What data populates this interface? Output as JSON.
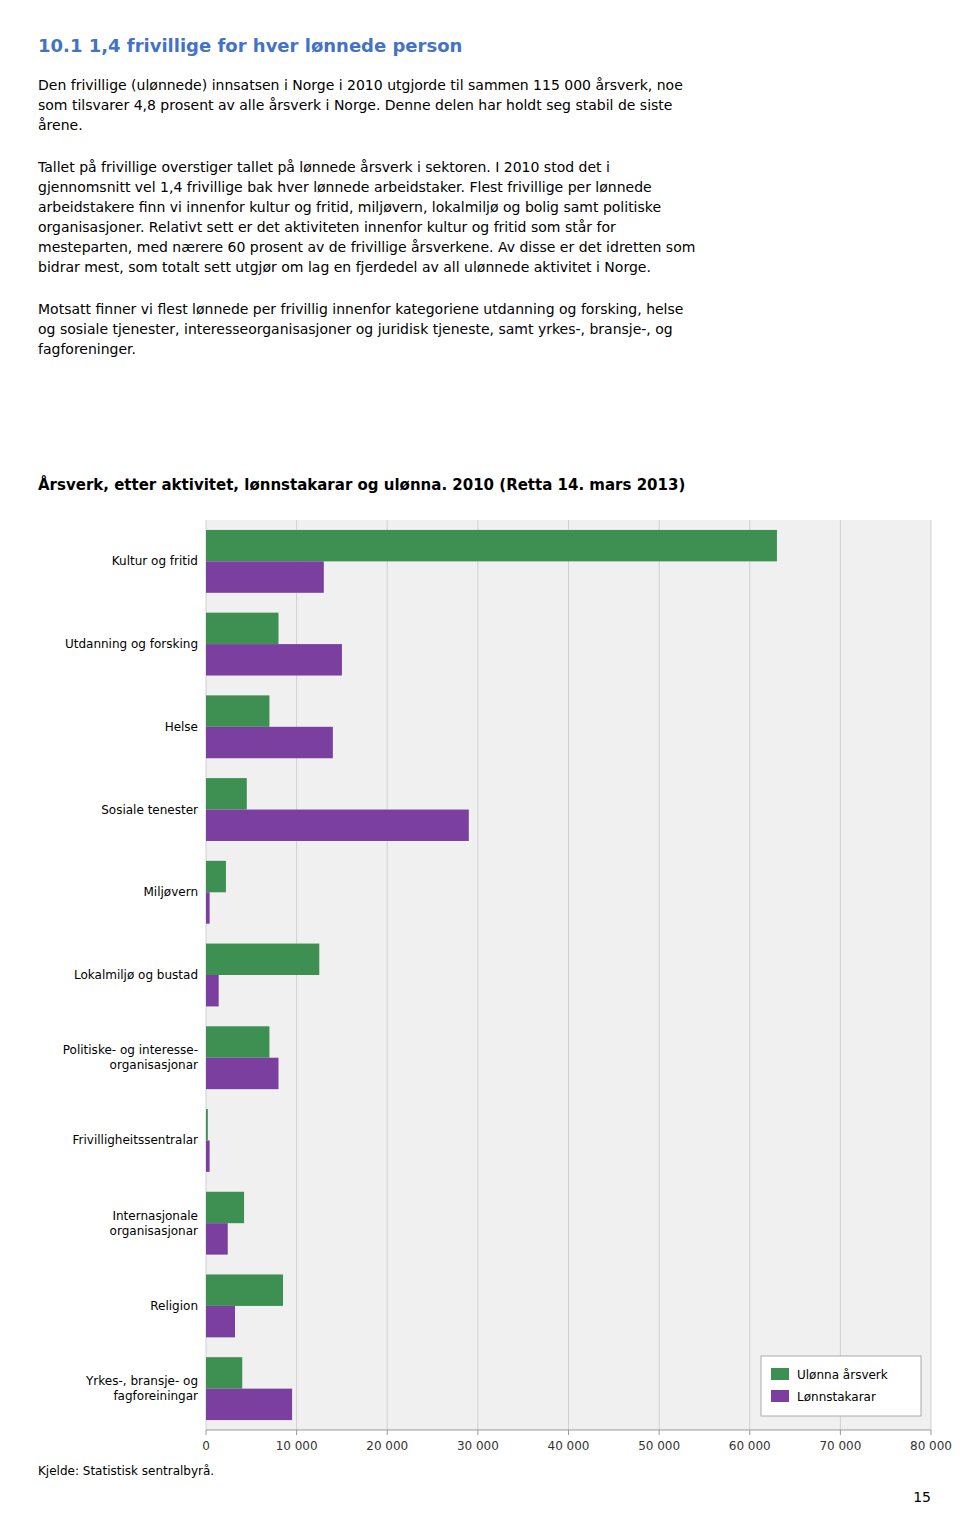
{
  "heading": "10.1 1,4 frivillige for hver lønnede person",
  "paragraphs": [
    "Den frivillige (ulønnede) innsatsen i Norge i 2010 utgjorde til sammen 115 000 årsverk, noe\nsom tilsvarer 4,8 prosent av alle årsverk i Norge. Denne delen har holdt seg stabil de siste\nårene.",
    "Tallet på frivillige overstiger tallet på lønnede årsverk i sektoren. I 2010 stod det i\ngjennomsnitt vel 1,4 frivillige bak hver lønnede arbeidstaker. Flest frivillige per lønnede\narbeidstakere finn vi innenfor kultur og fritid, miljøvern, lokalmiljø og bolig samt politiske\norganisasjoner. Relativt sett er det aktiviteten innenfor kultur og fritid som står for\nmesteparten, med nærere 60 prosent av de frivillige årsverkene. Av disse er det idretten som\nbidrar mest, som totalt sett utgjør om lag en fjerdedel av all ulønnede aktivitet i Norge.",
    "Motsatt finner vi flest lønnede per frivillig innenfor kategoriene utdanning og forsking, helse\nog sosiale tjenester, interesseorganisasjoner og juridisk tjeneste, samt yrkes-, bransje-, og\nfagforeninger."
  ],
  "chart_data": {
    "type": "bar",
    "orientation": "horizontal",
    "title": "Årsverk, etter aktivitet, lønnstakarar og ulønna. 2010 (Retta 14. mars 2013)",
    "categories": [
      "Kultur og fritid",
      "Utdanning og forsking",
      "Helse",
      "Sosiale tenester",
      "Miljøvern",
      "Lokalmiljø og bustad",
      "Politiske- og interesse-\norganisasjonar",
      "Frivilligheitssentralar",
      "Internasjonale\norganisasjonar",
      "Religion",
      "Yrkes-, bransje- og\nfagforeiningar"
    ],
    "series": [
      {
        "name": "Ulønna årsverk",
        "color": "#3d8f52",
        "values": [
          63000,
          8000,
          7000,
          4500,
          2200,
          12500,
          7000,
          200,
          4200,
          8500,
          4000
        ]
      },
      {
        "name": "Lønnstakarar",
        "color": "#7b3fa0",
        "values": [
          13000,
          15000,
          14000,
          29000,
          400,
          1400,
          8000,
          400,
          2400,
          3200,
          9500
        ]
      }
    ],
    "xlim": [
      0,
      80000
    ],
    "xticks": [
      0,
      {
        "value": 10000,
        "label": "10 000"
      },
      {
        "value": 20000,
        "label": "20 000"
      },
      {
        "value": 30000,
        "label": "30 000"
      },
      {
        "value": 40000,
        "label": "40 000"
      },
      {
        "value": 50000,
        "label": "50 000"
      },
      {
        "value": 60000,
        "label": "60 000"
      },
      {
        "value": 70000,
        "label": "70 000"
      },
      {
        "value": 80000,
        "label": "80 000"
      }
    ],
    "grid": true,
    "legend": "lower right"
  },
  "source": "Kjelde: Statistisk sentralbyrå.",
  "page_number": "15"
}
